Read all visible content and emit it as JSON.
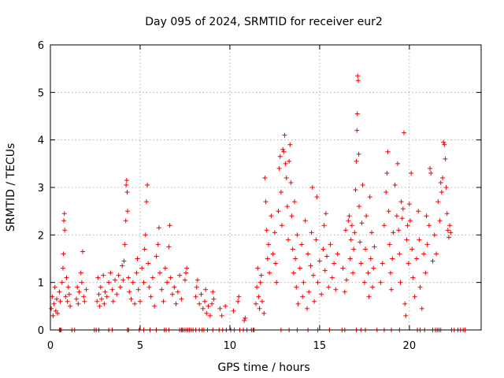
{
  "chart_data": {
    "type": "scatter",
    "title": "Day 095 of 2024, SRMTID for receiver eur2",
    "xlabel": "GPS time / hours",
    "ylabel": "SRMTID / TECUs",
    "xlim": [
      0,
      24
    ],
    "ylim": [
      0,
      6
    ],
    "x_ticks": [
      0,
      5,
      10,
      15,
      20
    ],
    "x_tick_labels": [
      "0",
      "5",
      "10",
      "15",
      "20"
    ],
    "y_ticks": [
      0,
      1,
      2,
      3,
      4,
      5,
      6
    ],
    "y_tick_labels": [
      "0",
      "1",
      "2",
      "3",
      "4",
      "5",
      "6"
    ],
    "grid": true,
    "marker": "+",
    "color": "#ee0000",
    "series": [
      {
        "name": "SRMTID",
        "points": [
          [
            0.05,
            0.45
          ],
          [
            0.1,
            0.7
          ],
          [
            0.15,
            0.3
          ],
          [
            0.2,
            0.55
          ],
          [
            0.25,
            0.9
          ],
          [
            0.3,
            0.4
          ],
          [
            0.35,
            0.65
          ],
          [
            0.4,
            0.35
          ],
          [
            0.5,
            0.8
          ],
          [
            0.55,
            0.6
          ],
          [
            0.65,
            1.0
          ],
          [
            0.7,
            1.3
          ],
          [
            0.72,
            1.6
          ],
          [
            0.75,
            2.3
          ],
          [
            0.78,
            2.45
          ],
          [
            0.8,
            2.1
          ],
          [
            0.85,
            0.7
          ],
          [
            0.9,
            1.1
          ],
          [
            0.95,
            0.6
          ],
          [
            1.0,
            0.9
          ],
          [
            1.05,
            0.75
          ],
          [
            1.1,
            0.5
          ],
          [
            1.45,
            0.65
          ],
          [
            1.5,
            0.9
          ],
          [
            1.55,
            0.55
          ],
          [
            1.6,
            0.8
          ],
          [
            1.7,
            1.2
          ],
          [
            1.75,
            1.0
          ],
          [
            1.8,
            1.65
          ],
          [
            1.85,
            0.7
          ],
          [
            1.9,
            0.6
          ],
          [
            2.0,
            0.85
          ],
          [
            2.6,
            0.6
          ],
          [
            2.65,
            1.1
          ],
          [
            2.7,
            0.75
          ],
          [
            2.75,
            0.5
          ],
          [
            2.8,
            0.9
          ],
          [
            2.85,
            0.65
          ],
          [
            2.95,
            1.15
          ],
          [
            3.0,
            0.55
          ],
          [
            3.05,
            0.8
          ],
          [
            3.15,
            0.7
          ],
          [
            3.25,
            1.0
          ],
          [
            3.35,
            1.2
          ],
          [
            3.45,
            0.85
          ],
          [
            3.5,
            0.6
          ],
          [
            3.6,
            1.05
          ],
          [
            3.7,
            0.75
          ],
          [
            3.8,
            1.15
          ],
          [
            3.9,
            0.9
          ],
          [
            4.0,
            1.35
          ],
          [
            4.05,
            1.05
          ],
          [
            4.1,
            1.45
          ],
          [
            4.15,
            1.8
          ],
          [
            4.2,
            2.3
          ],
          [
            4.22,
            3.05
          ],
          [
            4.25,
            3.15
          ],
          [
            4.28,
            2.9
          ],
          [
            4.3,
            2.5
          ],
          [
            4.35,
            1.1
          ],
          [
            4.4,
            0.8
          ],
          [
            4.5,
            0.65
          ],
          [
            4.6,
            1.0
          ],
          [
            4.7,
            0.55
          ],
          [
            4.8,
            1.2
          ],
          [
            4.85,
            1.5
          ],
          [
            4.9,
            0.85
          ],
          [
            5.0,
            0.6
          ],
          [
            5.1,
            1.3
          ],
          [
            5.2,
            1.0
          ],
          [
            5.25,
            1.7
          ],
          [
            5.3,
            2.0
          ],
          [
            5.35,
            2.7
          ],
          [
            5.4,
            3.05
          ],
          [
            5.45,
            1.4
          ],
          [
            5.5,
            0.9
          ],
          [
            5.6,
            0.7
          ],
          [
            5.7,
            1.1
          ],
          [
            5.8,
            0.5
          ],
          [
            5.9,
            1.55
          ],
          [
            6.0,
            1.8
          ],
          [
            6.05,
            2.15
          ],
          [
            6.1,
            1.2
          ],
          [
            6.2,
            0.85
          ],
          [
            6.3,
            0.6
          ],
          [
            6.4,
            1.3
          ],
          [
            6.5,
            1.0
          ],
          [
            6.6,
            1.75
          ],
          [
            6.65,
            2.2
          ],
          [
            6.7,
            1.1
          ],
          [
            6.8,
            0.75
          ],
          [
            6.9,
            0.9
          ],
          [
            7.0,
            0.55
          ],
          [
            7.1,
            0.8
          ],
          [
            7.2,
            1.15
          ],
          [
            7.3,
            0.65
          ],
          [
            7.5,
            1.05
          ],
          [
            7.55,
            1.2
          ],
          [
            7.6,
            1.3
          ],
          [
            8.1,
            0.7
          ],
          [
            8.15,
            0.9
          ],
          [
            8.2,
            1.05
          ],
          [
            8.3,
            0.55
          ],
          [
            8.4,
            0.75
          ],
          [
            8.5,
            0.45
          ],
          [
            8.6,
            0.6
          ],
          [
            8.65,
            0.85
          ],
          [
            8.7,
            0.35
          ],
          [
            8.8,
            0.5
          ],
          [
            8.9,
            0.3
          ],
          [
            9.0,
            0.55
          ],
          [
            9.05,
            0.8
          ],
          [
            9.1,
            0.65
          ],
          [
            9.45,
            0.45
          ],
          [
            9.55,
            0.3
          ],
          [
            9.75,
            0.5
          ],
          [
            10.2,
            0.4
          ],
          [
            10.45,
            0.6
          ],
          [
            10.5,
            0.7
          ],
          [
            10.8,
            0.2
          ],
          [
            10.85,
            0.25
          ],
          [
            11.45,
            0.55
          ],
          [
            11.5,
            0.9
          ],
          [
            11.55,
            1.3
          ],
          [
            11.6,
            0.7
          ],
          [
            11.65,
            0.45
          ],
          [
            11.7,
            1.0
          ],
          [
            11.75,
            1.15
          ],
          [
            11.8,
            0.6
          ],
          [
            11.9,
            0.35
          ],
          [
            11.95,
            3.2
          ],
          [
            12.0,
            2.7
          ],
          [
            12.05,
            2.1
          ],
          [
            12.1,
            1.5
          ],
          [
            12.15,
            1.8
          ],
          [
            12.2,
            1.2
          ],
          [
            12.3,
            2.4
          ],
          [
            12.4,
            1.6
          ],
          [
            12.5,
            2.05
          ],
          [
            12.55,
            1.4
          ],
          [
            12.6,
            1.0
          ],
          [
            12.7,
            2.5
          ],
          [
            12.75,
            3.4
          ],
          [
            12.8,
            3.65
          ],
          [
            12.85,
            2.9
          ],
          [
            12.9,
            2.2
          ],
          [
            12.95,
            3.8
          ],
          [
            13.0,
            3.75
          ],
          [
            13.05,
            4.1
          ],
          [
            13.1,
            3.5
          ],
          [
            13.15,
            3.2
          ],
          [
            13.2,
            2.6
          ],
          [
            13.25,
            1.9
          ],
          [
            13.3,
            3.55
          ],
          [
            13.35,
            3.9
          ],
          [
            13.4,
            3.1
          ],
          [
            13.45,
            2.4
          ],
          [
            13.5,
            1.7
          ],
          [
            13.55,
            1.2
          ],
          [
            13.6,
            2.7
          ],
          [
            13.65,
            1.5
          ],
          [
            13.7,
            0.9
          ],
          [
            13.75,
            2.0
          ],
          [
            13.8,
            0.55
          ],
          [
            13.9,
            1.3
          ],
          [
            14.0,
            1.8
          ],
          [
            14.05,
            0.7
          ],
          [
            14.1,
            1.0
          ],
          [
            14.2,
            2.3
          ],
          [
            14.3,
            0.45
          ],
          [
            14.35,
            1.6
          ],
          [
            14.4,
            0.8
          ],
          [
            14.5,
            1.35
          ],
          [
            14.55,
            2.05
          ],
          [
            14.6,
            3.0
          ],
          [
            14.65,
            1.15
          ],
          [
            14.7,
            0.6
          ],
          [
            14.8,
            1.9
          ],
          [
            14.85,
            2.8
          ],
          [
            14.9,
            1.0
          ],
          [
            15.0,
            1.45
          ],
          [
            15.1,
            0.75
          ],
          [
            15.2,
            1.7
          ],
          [
            15.25,
            2.2
          ],
          [
            15.3,
            1.25
          ],
          [
            15.35,
            2.45
          ],
          [
            15.4,
            1.55
          ],
          [
            15.5,
            0.9
          ],
          [
            15.6,
            1.8
          ],
          [
            15.7,
            1.1
          ],
          [
            15.8,
            1.4
          ],
          [
            15.9,
            0.85
          ],
          [
            16.0,
            1.6
          ],
          [
            16.3,
            1.3
          ],
          [
            16.4,
            0.8
          ],
          [
            16.45,
            2.1
          ],
          [
            16.5,
            1.05
          ],
          [
            16.6,
            2.3
          ],
          [
            16.65,
            2.4
          ],
          [
            16.7,
            1.5
          ],
          [
            16.75,
            1.9
          ],
          [
            16.8,
            2.2
          ],
          [
            16.85,
            1.2
          ],
          [
            16.9,
            1.7
          ],
          [
            16.95,
            2.05
          ],
          [
            17.0,
            2.95
          ],
          [
            17.05,
            3.55
          ],
          [
            17.08,
            4.2
          ],
          [
            17.1,
            4.55
          ],
          [
            17.12,
            5.35
          ],
          [
            17.15,
            5.25
          ],
          [
            17.18,
            3.7
          ],
          [
            17.2,
            2.6
          ],
          [
            17.25,
            1.85
          ],
          [
            17.3,
            1.4
          ],
          [
            17.35,
            2.25
          ],
          [
            17.4,
            3.05
          ],
          [
            17.5,
            1.0
          ],
          [
            17.55,
            1.7
          ],
          [
            17.6,
            2.4
          ],
          [
            17.7,
            1.2
          ],
          [
            17.75,
            0.7
          ],
          [
            17.8,
            2.8
          ],
          [
            17.85,
            1.5
          ],
          [
            17.9,
            2.05
          ],
          [
            17.95,
            0.9
          ],
          [
            18.0,
            1.3
          ],
          [
            18.05,
            1.75
          ],
          [
            18.4,
            1.0
          ],
          [
            18.5,
            1.4
          ],
          [
            18.6,
            2.2
          ],
          [
            18.7,
            2.9
          ],
          [
            18.75,
            3.3
          ],
          [
            18.8,
            3.75
          ],
          [
            18.85,
            2.5
          ],
          [
            18.9,
            1.8
          ],
          [
            18.95,
            1.2
          ],
          [
            19.0,
            0.85
          ],
          [
            19.05,
            1.5
          ],
          [
            19.1,
            2.05
          ],
          [
            19.2,
            3.05
          ],
          [
            19.3,
            2.4
          ],
          [
            19.35,
            3.5
          ],
          [
            19.4,
            2.1
          ],
          [
            19.45,
            1.6
          ],
          [
            19.5,
            1.0
          ],
          [
            19.55,
            2.7
          ],
          [
            19.6,
            2.35
          ],
          [
            19.65,
            2.55
          ],
          [
            19.7,
            4.15
          ],
          [
            19.75,
            0.55
          ],
          [
            19.8,
            0.3
          ],
          [
            19.85,
            1.9
          ],
          [
            19.9,
            2.2
          ],
          [
            19.95,
            1.4
          ],
          [
            20.0,
            2.65
          ],
          [
            20.05,
            2.3
          ],
          [
            20.1,
            3.3
          ],
          [
            20.15,
            1.7
          ],
          [
            20.2,
            1.1
          ],
          [
            20.3,
            0.7
          ],
          [
            20.4,
            1.5
          ],
          [
            20.5,
            2.5
          ],
          [
            20.55,
            1.9
          ],
          [
            20.6,
            0.9
          ],
          [
            20.7,
            0.45
          ],
          [
            20.8,
            1.6
          ],
          [
            20.9,
            1.2
          ],
          [
            20.95,
            2.4
          ],
          [
            21.0,
            1.8
          ],
          [
            21.1,
            2.2
          ],
          [
            21.15,
            3.4
          ],
          [
            21.2,
            3.3
          ],
          [
            21.3,
            1.45
          ],
          [
            21.4,
            2.0
          ],
          [
            21.5,
            1.6
          ],
          [
            21.6,
            2.7
          ],
          [
            21.7,
            2.3
          ],
          [
            21.75,
            3.1
          ],
          [
            21.8,
            2.9
          ],
          [
            21.85,
            3.2
          ],
          [
            21.9,
            3.95
          ],
          [
            21.95,
            3.9
          ],
          [
            22.0,
            3.6
          ],
          [
            22.05,
            3.0
          ],
          [
            22.1,
            2.45
          ],
          [
            22.15,
            2.1
          ],
          [
            22.2,
            1.95
          ],
          [
            22.25,
            2.2
          ],
          [
            22.3,
            2.05
          ]
        ],
        "zero_points": [
          0.5,
          0.55,
          0.6,
          1.2,
          1.35,
          2.45,
          2.55,
          2.7,
          3.25,
          3.45,
          4.3,
          4.35,
          4.95,
          5.2,
          5.55,
          5.9,
          6.35,
          6.45,
          6.6,
          7.2,
          7.3,
          7.35,
          7.45,
          7.55,
          7.65,
          7.75,
          7.85,
          7.95,
          8.1,
          8.3,
          8.45,
          8.55,
          8.75,
          9.05,
          9.4,
          9.6,
          9.8,
          10.05,
          10.25,
          10.55,
          10.75,
          10.95,
          11.2,
          11.3,
          11.35,
          12.85,
          13.3,
          13.75,
          14.35,
          14.9,
          15.55,
          16.25,
          16.4,
          17.05,
          17.3,
          17.55,
          18.2,
          18.6,
          19.0,
          19.45,
          20.45,
          20.6,
          20.85,
          21.3,
          21.45,
          21.55,
          21.65,
          21.75,
          22.35,
          22.5,
          22.7,
          22.85,
          23.0,
          23.1
        ]
      }
    ]
  }
}
